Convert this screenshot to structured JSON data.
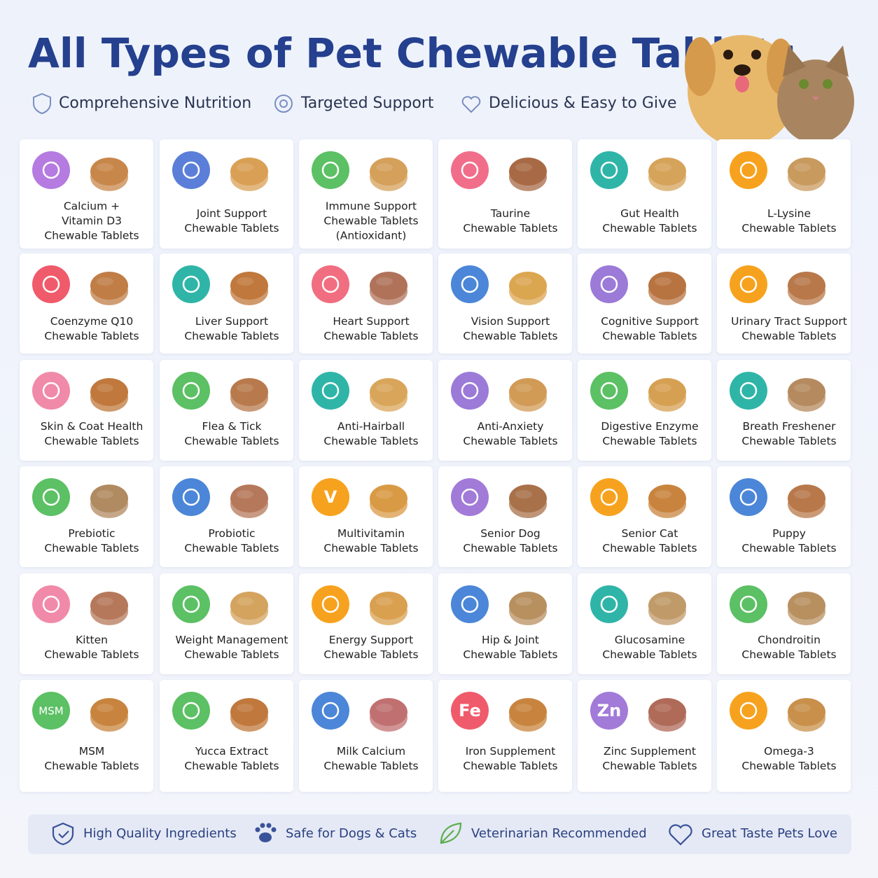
{
  "header": {
    "title": "All Types of Pet Chewable Tablets",
    "features": [
      "Comprehensive Nutrition",
      "Targeted Support",
      "Delicious & Easy to Give"
    ]
  },
  "items": [
    {
      "lines": [
        "Calcium +",
        "Vitamin D3",
        "Chewable Tablets"
      ],
      "icon_color": "#b57be0",
      "tablet_color": "#c8874a"
    },
    {
      "lines": [
        "Joint Support",
        "Chewable Tablets"
      ],
      "icon_color": "#5b7fd8",
      "tablet_color": "#d9a055"
    },
    {
      "lines": [
        "Immune Support",
        "Chewable Tablets",
        "(Antioxidant)"
      ],
      "icon_color": "#5cc064",
      "tablet_color": "#d4a05a"
    },
    {
      "lines": [
        "Taurine",
        "Chewable Tablets"
      ],
      "icon_color": "#f06e8a",
      "tablet_color": "#a86a45"
    },
    {
      "lines": [
        "Gut Health",
        "Chewable Tablets"
      ],
      "icon_color": "#2fb5a8",
      "tablet_color": "#d6a35a"
    },
    {
      "lines": [
        "L-Lysine",
        "Chewable Tablets"
      ],
      "icon_color": "#f7a21e",
      "tablet_color": "#c99a5e"
    },
    {
      "lines": [
        "Coenzyme Q10",
        "Chewable Tablets"
      ],
      "icon_color": "#ef5b6a",
      "tablet_color": "#c07d45"
    },
    {
      "lines": [
        "Liver Support",
        "Chewable Tablets"
      ],
      "icon_color": "#2fb5a8",
      "tablet_color": "#c0783c",
      "label_color": "#2d4a9a"
    },
    {
      "lines": [
        "Heart Support",
        "Chewable Tablets"
      ],
      "icon_color": "#f06e80",
      "tablet_color": "#b0735a",
      "label_color": "#2d4a9a"
    },
    {
      "lines": [
        "Vision Support",
        "Chewable Tablets"
      ],
      "icon_color": "#4b86d8",
      "tablet_color": "#dba650",
      "label_color": "#2d4a9a"
    },
    {
      "lines": [
        "Cognitive Support",
        "Chewable Tablets"
      ],
      "icon_color": "#9b7ad8",
      "tablet_color": "#b87440"
    },
    {
      "lines": [
        "Urinary Tract Support",
        "Chewable Tablets"
      ],
      "icon_color": "#f7a21e",
      "tablet_color": "#b8784a",
      "label_color": "#2d4a9a"
    },
    {
      "lines": [
        "Skin & Coat Health",
        "Chewable Tablets"
      ],
      "icon_color": "#f08aa8",
      "tablet_color": "#c0783c"
    },
    {
      "lines": [
        "Flea & Tick",
        "Chewable Tablets"
      ],
      "icon_color": "#5cc064",
      "tablet_color": "#b87a4c"
    },
    {
      "lines": [
        "Anti-Hairball",
        "Chewable Tablets"
      ],
      "icon_color": "#2fb5a8",
      "tablet_color": "#d9a55a"
    },
    {
      "lines": [
        "Anti-Anxiety",
        "Chewable Tablets"
      ],
      "icon_color": "#9b7ad8",
      "tablet_color": "#d19a55"
    },
    {
      "lines": [
        "Digestive Enzyme",
        "Chewable Tablets"
      ],
      "icon_color": "#5cc064",
      "tablet_color": "#d6a052"
    },
    {
      "lines": [
        "Breath Freshener",
        "Chewable Tablets"
      ],
      "icon_color": "#2fb5a8",
      "tablet_color": "#b58a5e"
    },
    {
      "lines": [
        "Prebiotic",
        "Chewable Tablets"
      ],
      "icon_color": "#5cc064",
      "tablet_color": "#b08a60"
    },
    {
      "lines": [
        "Probiotic",
        "Chewable Tablets"
      ],
      "icon_color": "#4b86d8",
      "tablet_color": "#b5785a"
    },
    {
      "lines": [
        "Multivitamin",
        "Chewable Tablets"
      ],
      "icon_color": "#f7a21e",
      "icon_text": "V",
      "tablet_color": "#d99a45"
    },
    {
      "lines": [
        "Senior Dog",
        "Chewable Tablets"
      ],
      "icon_color": "#a27ad8",
      "tablet_color": "#a8714a"
    },
    {
      "lines": [
        "Senior Cat",
        "Chewable Tablets"
      ],
      "icon_color": "#f7a21e",
      "tablet_color": "#c8843e"
    },
    {
      "lines": [
        "Puppy",
        "Chewable Tablets"
      ],
      "icon_color": "#4b86d8",
      "tablet_color": "#b8784a"
    },
    {
      "lines": [
        "Kitten",
        "Chewable Tablets"
      ],
      "icon_color": "#f08aa8",
      "tablet_color": "#b5785a"
    },
    {
      "lines": [
        "Weight Management",
        "Chewable Tablets"
      ],
      "icon_color": "#5cc064",
      "tablet_color": "#d4a35e"
    },
    {
      "lines": [
        "Energy Support",
        "Chewable Tablets"
      ],
      "icon_color": "#f7a21e",
      "tablet_color": "#d9a050"
    },
    {
      "lines": [
        "Hip & Joint",
        "Chewable Tablets"
      ],
      "icon_color": "#4b86d8",
      "tablet_color": "#b89060"
    },
    {
      "lines": [
        "Glucosamine",
        "Chewable Tablets"
      ],
      "icon_color": "#2fb5a8",
      "tablet_color": "#c09a68"
    },
    {
      "lines": [
        "Chondroitin",
        "Chewable Tablets"
      ],
      "icon_color": "#5cc064",
      "tablet_color": "#b89060"
    },
    {
      "lines": [
        "MSM",
        "Chewable Tablets"
      ],
      "icon_color": "#5cc064",
      "icon_text": "MSM",
      "tablet_color": "#c8843e"
    },
    {
      "lines": [
        "Yucca Extract",
        "Chewable Tablets"
      ],
      "icon_color": "#5cc064",
      "tablet_color": "#c0783c"
    },
    {
      "lines": [
        "Milk Calcium",
        "Chewable Tablets"
      ],
      "icon_color": "#4b86d8",
      "tablet_color": "#c07070"
    },
    {
      "lines": [
        "Iron Supplement",
        "Chewable Tablets"
      ],
      "icon_color": "#ef5b6a",
      "icon_text": "Fe",
      "tablet_color": "#c8843e"
    },
    {
      "lines": [
        "Zinc Supplement",
        "Chewable Tablets"
      ],
      "icon_color": "#a27ad8",
      "icon_text": "Zn",
      "tablet_color": "#b06a58"
    },
    {
      "lines": [
        "Omega-3",
        "Chewable Tablets"
      ],
      "icon_color": "#f7a21e",
      "tablet_color": "#c8904a"
    }
  ],
  "footer": {
    "badges": [
      "High Quality Ingredients",
      "Safe for Dogs & Cats",
      "Veterinarian Recommended",
      "Great Taste Pets Love"
    ]
  }
}
